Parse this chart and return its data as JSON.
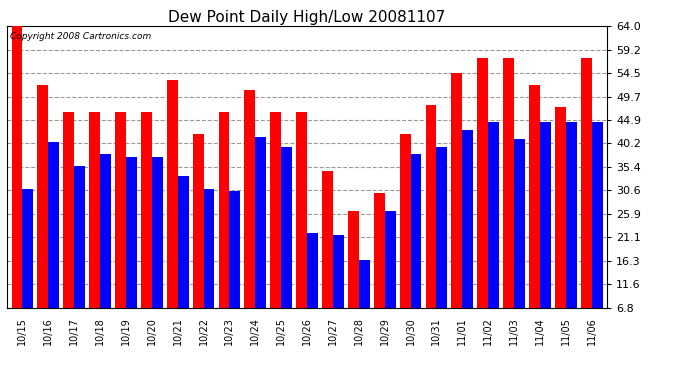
{
  "title": "Dew Point Daily High/Low 20081107",
  "copyright": "Copyright 2008 Cartronics.com",
  "dates": [
    "10/15",
    "10/16",
    "10/17",
    "10/18",
    "10/19",
    "10/20",
    "10/21",
    "10/22",
    "10/23",
    "10/24",
    "10/25",
    "10/26",
    "10/27",
    "10/28",
    "10/29",
    "10/30",
    "10/31",
    "11/01",
    "11/02",
    "11/03",
    "11/04",
    "11/05",
    "11/06"
  ],
  "highs": [
    64.0,
    52.0,
    46.5,
    46.5,
    46.5,
    46.5,
    53.0,
    42.0,
    46.5,
    51.0,
    46.5,
    46.5,
    34.5,
    26.5,
    30.0,
    42.0,
    48.0,
    54.5,
    57.5,
    57.5,
    52.0,
    47.5,
    57.5
  ],
  "lows": [
    31.0,
    40.5,
    35.5,
    38.0,
    37.5,
    37.5,
    33.5,
    31.0,
    30.5,
    41.5,
    39.5,
    22.0,
    21.5,
    16.5,
    26.5,
    38.0,
    39.5,
    43.0,
    44.5,
    41.0,
    44.5,
    44.5,
    44.5
  ],
  "ymin": 6.8,
  "ymax": 64.0,
  "yticks": [
    6.8,
    11.6,
    16.3,
    21.1,
    25.9,
    30.6,
    35.4,
    40.2,
    44.9,
    49.7,
    54.5,
    59.2,
    64.0
  ],
  "bar_width": 0.42,
  "high_color": "#ff0000",
  "low_color": "#0000ff",
  "bg_color": "#ffffff",
  "grid_color": "#999999",
  "title_fontsize": 11,
  "copyright_fontsize": 6.5,
  "tick_fontsize": 7,
  "ytick_fontsize": 8
}
